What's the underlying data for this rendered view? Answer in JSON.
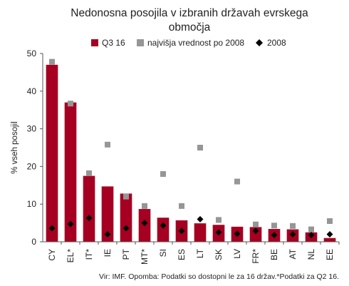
{
  "chart_data": {
    "type": "bar",
    "title_line1": "Nedonosna posojila v izbranih državah evrskega",
    "title_line2": "območja",
    "ylabel": "% vseh posojil",
    "ylim": [
      0,
      50
    ],
    "yticks": [
      0,
      10,
      20,
      30,
      40,
      50
    ],
    "categories": [
      "CY",
      "EL*",
      "IT*",
      "IE",
      "PT",
      "MT*",
      "SI",
      "ES",
      "LT",
      "SK",
      "LV",
      "FR*",
      "BE",
      "AT",
      "NL",
      "EE"
    ],
    "series": [
      {
        "name": "Q3 16",
        "kind": "bar",
        "color": "#a50021",
        "values": [
          47.0,
          37.0,
          17.5,
          14.7,
          12.8,
          8.7,
          6.4,
          5.7,
          4.9,
          4.5,
          4.0,
          3.9,
          3.4,
          3.3,
          2.5,
          1.0
        ]
      },
      {
        "name": "najvišja vrednost po 2008",
        "kind": "square",
        "color": "#969696",
        "values": [
          47.8,
          36.7,
          18.2,
          25.8,
          12.0,
          9.5,
          18.0,
          9.5,
          25.0,
          5.8,
          16.0,
          4.6,
          4.3,
          4.2,
          3.3,
          5.5
        ]
      },
      {
        "name": "2008",
        "kind": "diamond",
        "color": "#000000",
        "values": [
          3.6,
          4.7,
          6.3,
          2.0,
          3.6,
          5.0,
          4.3,
          2.9,
          6.0,
          2.5,
          2.1,
          2.9,
          1.8,
          2.0,
          1.8,
          2.0
        ]
      }
    ],
    "source": "Vir: IMF. Opomba: Podatki so dostopni le za 16 držav.*Podatki za Q2 16."
  }
}
